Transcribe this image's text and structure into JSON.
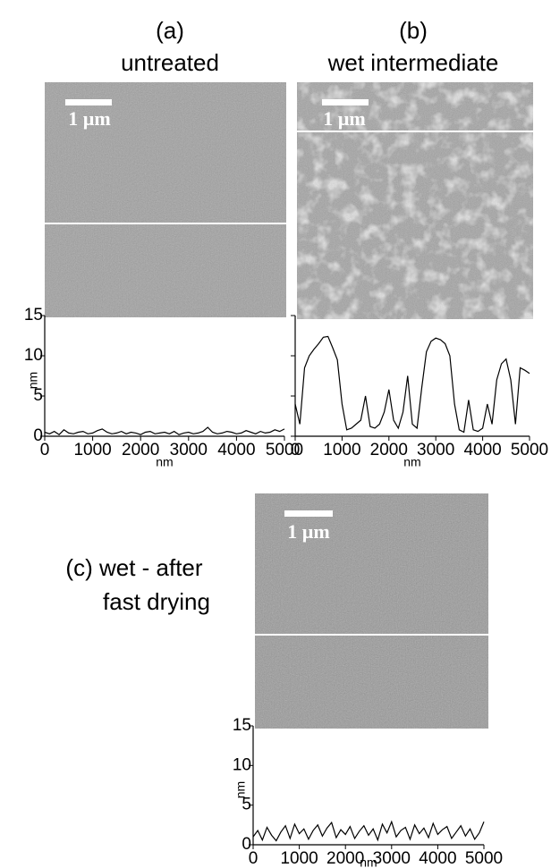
{
  "panels": [
    {
      "label": "(a)",
      "caption": "untreated",
      "scale_bar": "1 µm"
    },
    {
      "label": "(b)",
      "caption": "wet intermediate",
      "scale_bar": "1 µm"
    },
    {
      "caption_lines": [
        "(c) wet - after",
        "fast drying"
      ],
      "scale_bar": "1 µm"
    }
  ],
  "chart_data": [
    {
      "type": "line",
      "xlabel": "nm",
      "ylabel": "nm",
      "color": "#000000",
      "show_ytick_labels": true,
      "xlim": [
        0,
        5000
      ],
      "ylim": [
        0,
        15
      ],
      "xticks": [
        0,
        1000,
        2000,
        3000,
        4000,
        5000
      ],
      "yticks": [
        0,
        5,
        10,
        15
      ],
      "x": [
        0,
        100,
        200,
        300,
        400,
        500,
        600,
        700,
        800,
        900,
        1000,
        1100,
        1200,
        1300,
        1400,
        1500,
        1600,
        1700,
        1800,
        1900,
        2000,
        2100,
        2200,
        2300,
        2400,
        2500,
        2600,
        2700,
        2800,
        2900,
        3000,
        3100,
        3200,
        3300,
        3400,
        3500,
        3600,
        3700,
        3800,
        3900,
        4000,
        4100,
        4200,
        4300,
        4400,
        4500,
        4600,
        4700,
        4800,
        4900,
        5000
      ],
      "values": [
        0.5,
        0.3,
        0.6,
        0.2,
        0.8,
        0.4,
        0.3,
        0.5,
        0.6,
        0.3,
        0.4,
        0.7,
        0.9,
        0.5,
        0.3,
        0.4,
        0.6,
        0.3,
        0.5,
        0.4,
        0.2,
        0.5,
        0.6,
        0.3,
        0.4,
        0.5,
        0.3,
        0.6,
        0.2,
        0.4,
        0.5,
        0.3,
        0.4,
        0.6,
        1.1,
        0.5,
        0.3,
        0.4,
        0.6,
        0.5,
        0.3,
        0.4,
        0.7,
        0.5,
        0.3,
        0.6,
        0.4,
        0.5,
        0.8,
        0.6,
        0.9
      ]
    },
    {
      "type": "line",
      "xlabel": "nm",
      "ylabel": "nm",
      "color": "#000000",
      "show_ytick_labels": false,
      "xlim": [
        0,
        5000
      ],
      "ylim": [
        0,
        15
      ],
      "xticks": [
        0,
        1000,
        2000,
        3000,
        4000,
        5000
      ],
      "yticks": [
        0,
        5,
        10,
        15
      ],
      "x": [
        0,
        100,
        200,
        300,
        400,
        500,
        600,
        700,
        800,
        900,
        1000,
        1100,
        1200,
        1300,
        1400,
        1500,
        1600,
        1700,
        1800,
        1900,
        2000,
        2100,
        2200,
        2300,
        2400,
        2500,
        2600,
        2700,
        2800,
        2900,
        3000,
        3100,
        3200,
        3300,
        3400,
        3500,
        3600,
        3700,
        3800,
        3900,
        4000,
        4100,
        4200,
        4300,
        4400,
        4500,
        4600,
        4700,
        4800,
        4900,
        5000
      ],
      "values": [
        4,
        1.5,
        8.5,
        10,
        10.8,
        11.5,
        12.3,
        12.4,
        11,
        9.5,
        4,
        0.8,
        1,
        1.5,
        2,
        5,
        1.2,
        1,
        1.5,
        3,
        5.8,
        2,
        1,
        3,
        7.5,
        1.5,
        1,
        6,
        10.5,
        11.8,
        12.2,
        12,
        11.5,
        10,
        4,
        0.8,
        0.5,
        4.5,
        0.8,
        0.6,
        1,
        4,
        1.5,
        7,
        9,
        9.6,
        7,
        1.5,
        8.5,
        8.2,
        7.8
      ]
    },
    {
      "type": "line",
      "xlabel": "nm",
      "ylabel": "nm",
      "color": "#000000",
      "show_ytick_labels": true,
      "xlim": [
        0,
        5000
      ],
      "ylim": [
        0,
        15
      ],
      "xticks": [
        0,
        1000,
        2000,
        3000,
        4000,
        5000
      ],
      "yticks": [
        0,
        5,
        10,
        15
      ],
      "x": [
        0,
        100,
        200,
        300,
        400,
        500,
        600,
        700,
        800,
        900,
        1000,
        1100,
        1200,
        1300,
        1400,
        1500,
        1600,
        1700,
        1800,
        1900,
        2000,
        2100,
        2200,
        2300,
        2400,
        2500,
        2600,
        2700,
        2800,
        2900,
        3000,
        3100,
        3200,
        3300,
        3400,
        3500,
        3600,
        3700,
        3800,
        3900,
        4000,
        4100,
        4200,
        4300,
        4400,
        4500,
        4600,
        4700,
        4800,
        4900,
        5000
      ],
      "values": [
        1,
        1.8,
        0.6,
        2.2,
        1.2,
        0.5,
        1.6,
        2.4,
        0.8,
        2.6,
        1.4,
        2,
        0.7,
        1.8,
        2.5,
        1.1,
        2.1,
        2.8,
        0.9,
        1.9,
        1.3,
        2.3,
        0.8,
        1.7,
        2.4,
        1.2,
        2,
        0.6,
        2.6,
        1.5,
        2.9,
        1,
        1.8,
        2.2,
        0.7,
        2.5,
        1.4,
        2.1,
        0.9,
        2.7,
        1.3,
        1.9,
        2.3,
        0.8,
        1.6,
        2.4,
        1.1,
        2,
        0.7,
        1.5,
        2.9
      ]
    }
  ]
}
